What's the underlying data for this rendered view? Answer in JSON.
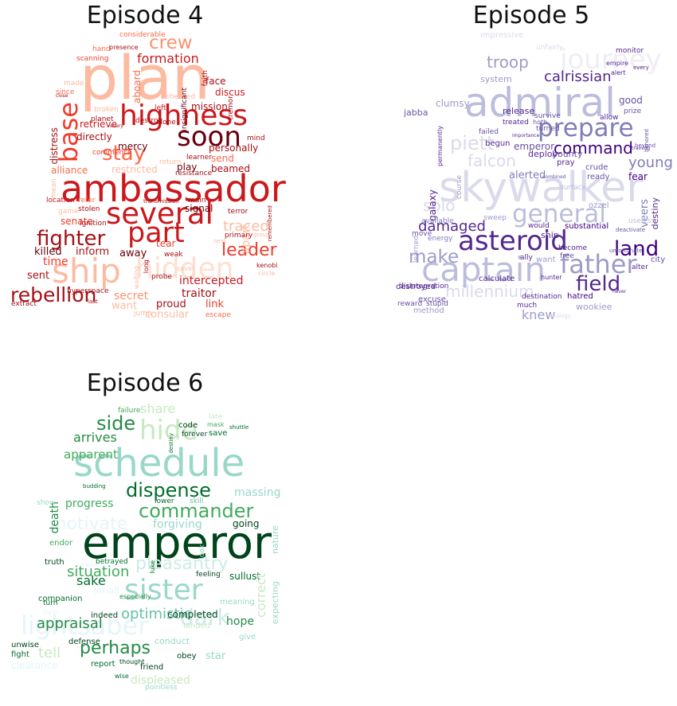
{
  "panels": [
    {
      "title": "Episode 4",
      "colormap": "reds",
      "colors": [
        "#fcbba1",
        "#fb6a4a",
        "#ef3b2c",
        "#cb181d",
        "#a50f15",
        "#67000d",
        "#fc9272"
      ],
      "words": [
        "plan",
        "ambassador",
        "several",
        "highness",
        "soon",
        "part",
        "ship",
        "base",
        "hidden",
        "fighter",
        "stay",
        "rebellion",
        "crew",
        "formation",
        "leader",
        "killed",
        "inform",
        "away",
        "sent",
        "time",
        "intercepted",
        "traitor",
        "secret",
        "link",
        "consular",
        "proud",
        "want",
        "mercy",
        "directly",
        "retrieve",
        "distress",
        "alliance",
        "restricted",
        "senate",
        "send",
        "beamed",
        "play",
        "mission",
        "signal",
        "tear",
        "aboard",
        "considerable",
        "presence",
        "hand",
        "scanning",
        "made",
        "since",
        "faith",
        "face",
        "discus",
        "checked",
        "left",
        "insignificant",
        "tremor",
        "broken",
        "planet",
        "alone",
        "personally",
        "mind",
        "commence",
        "learner",
        "resistance",
        "return",
        "location",
        "refer",
        "stolen",
        "ignition",
        "transmission",
        "main",
        "terror",
        "traced",
        "apart",
        "primary",
        "group",
        "remembered",
        "kenobi",
        "circle",
        "long",
        "probe",
        "hyperspace",
        "jump",
        "escape",
        "extract",
        "last",
        "waiting",
        "cover",
        "weak",
        "next",
        "game",
        "mean",
        "destroy",
        "every",
        "close"
      ]
    },
    {
      "title": "Episode 5",
      "colormap": "purples",
      "colors": [
        "#dadaeb",
        "#bcbddc",
        "#9e9ac8",
        "#807dba",
        "#6a51a3",
        "#54278f",
        "#3f007d"
      ],
      "words": [
        "skywalker",
        "admiral",
        "captain",
        "asteroid",
        "father",
        "prepare",
        "general",
        "command",
        "land",
        "field",
        "make",
        "damaged",
        "troop",
        "journey",
        "calrissian",
        "piett",
        "falcon",
        "young",
        "solo",
        "millennium",
        "knew",
        "galaxy",
        "emperor",
        "impressive",
        "system",
        "clumsy",
        "jabba",
        "monitor",
        "empire",
        "alert",
        "good",
        "release",
        "hoth",
        "survive",
        "allow",
        "treated",
        "deploy",
        "bounty",
        "crude",
        "ready",
        "fear",
        "beyond",
        "begun",
        "pray",
        "alerted",
        "substantial",
        "ozzel",
        "destiny",
        "veers",
        "would",
        "available",
        "energy",
        "sweep",
        "move",
        "learned",
        "destroyed",
        "excuse",
        "method",
        "stupid",
        "reward",
        "disintegration",
        "destination",
        "much",
        "hatred",
        "wookiee",
        "apology",
        "hunter",
        "calculate",
        "want",
        "city",
        "alter",
        "free",
        "become",
        "ally",
        "ship",
        "surface",
        "turned",
        "failed",
        "course",
        "prize",
        "useless",
        "deactivate",
        "unfortunate",
        "every",
        "unfairly",
        "permanently",
        "importance",
        "honored",
        "training",
        "never",
        "combined"
      ]
    },
    {
      "title": "Episode 6",
      "colormap": "greens",
      "colors": [
        "#c7e9c0",
        "#a1d99b",
        "#74c476",
        "#41ab5d",
        "#238b45",
        "#006d2c",
        "#00441b",
        "#99d8c9",
        "#66c2a4"
      ],
      "words": [
        "emperor",
        "schedule",
        "sister",
        "hide",
        "side",
        "commander",
        "dispense",
        "lightsaber",
        "dark",
        "perhaps",
        "appraisal",
        "optimistic",
        "situation",
        "pleasantry",
        "arrives",
        "apparent",
        "motivate",
        "progress",
        "forgiving",
        "massing",
        "death",
        "sake",
        "share",
        "code",
        "forever",
        "save",
        "mask",
        "failure",
        "late",
        "lower",
        "skill",
        "going",
        "nature",
        "truth",
        "name",
        "endor",
        "betrayed",
        "feeling",
        "sullust",
        "correct",
        "expecting",
        "small",
        "meaning",
        "completed",
        "hope",
        "indeed",
        "companion",
        "turn",
        "twin",
        "landed",
        "conduct",
        "star",
        "tell",
        "report",
        "friend",
        "obey",
        "defense",
        "unwise",
        "fight",
        "clearance",
        "displeased",
        "thought",
        "wise",
        "pointless",
        "give",
        "especially",
        "show",
        "luke",
        "look",
        "destiny",
        "shuttle",
        "budding"
      ]
    }
  ]
}
